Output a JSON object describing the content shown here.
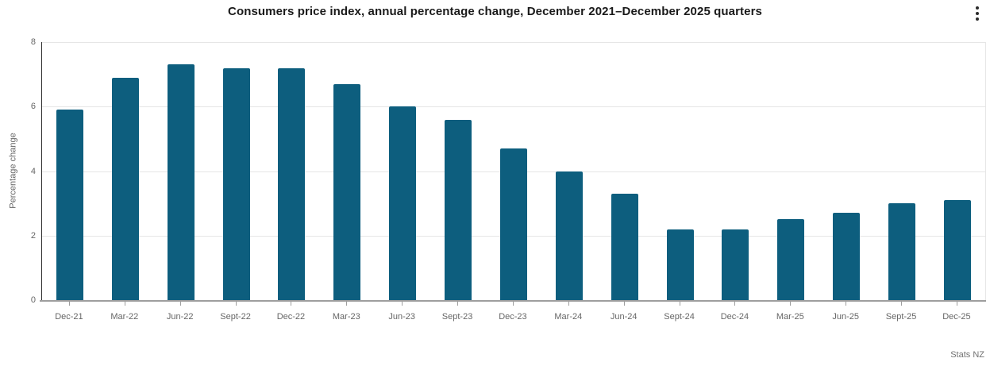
{
  "header": {
    "title": "Consumers price index, annual percentage change, December 2021–December 2025 quarters",
    "menu_icon": "kebab-menu"
  },
  "chart_data": {
    "type": "bar",
    "title": "Consumers price index, annual percentage change, December 2021–December 2025 quarters",
    "categories": [
      "Dec-21",
      "Mar-22",
      "Jun-22",
      "Sept-22",
      "Dec-22",
      "Mar-23",
      "Jun-23",
      "Sept-23",
      "Dec-23",
      "Mar-24",
      "Jun-24",
      "Sept-24",
      "Dec-24",
      "Mar-25",
      "Jun-25",
      "Sept-25",
      "Dec-25"
    ],
    "values": [
      5.9,
      6.9,
      7.3,
      7.2,
      7.2,
      6.7,
      6.0,
      5.6,
      4.7,
      4.0,
      3.3,
      2.2,
      2.2,
      2.5,
      2.7,
      3.0,
      3.1
    ],
    "xlabel": "",
    "ylabel": "Percentage change",
    "ylim": [
      0,
      8
    ],
    "yticks": [
      0,
      2,
      4,
      6,
      8
    ],
    "grid": true,
    "legend": "none",
    "bar_color": "#0d5e7e",
    "source": "Stats NZ"
  },
  "colors": {
    "bar": "#0d5e7e",
    "grid": "#e6e6e6",
    "y_axis_line": "#2e2e2e",
    "x_axis_line": "#9e9e9e",
    "tick_label": "#666666",
    "title": "#1a1a1a",
    "source": "#707070"
  }
}
